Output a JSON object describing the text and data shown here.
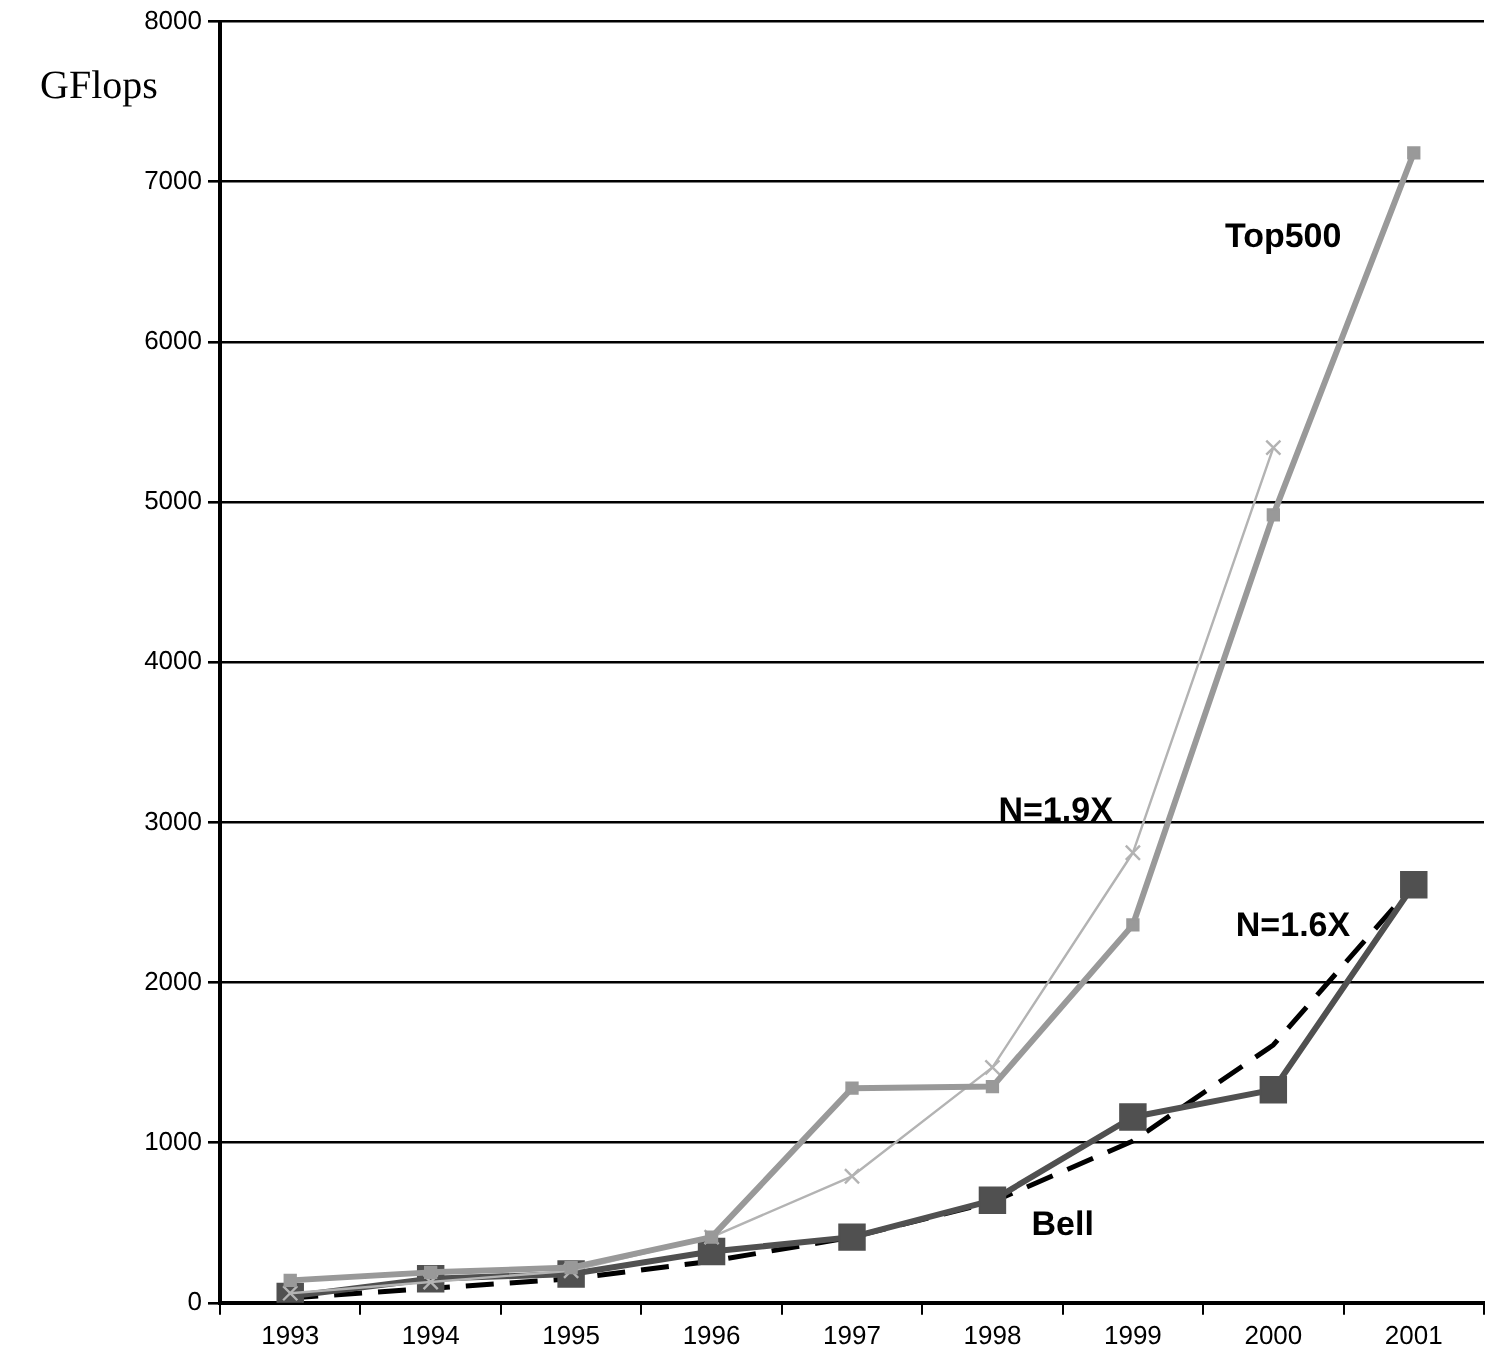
{
  "chart_data": {
    "type": "line",
    "ylabel": "GFlops",
    "categories": [
      "1993",
      "1994",
      "1995",
      "1996",
      "1997",
      "1998",
      "1999",
      "2000",
      "2001"
    ],
    "series": [
      {
        "name": "Top500",
        "color": "#999999",
        "marker": "square",
        "values": [
          140,
          190,
          220,
          410,
          1340,
          1350,
          2360,
          4920,
          7180
        ]
      },
      {
        "name": "N=1.9X",
        "color": "#b3b3b3",
        "marker": "cross",
        "values": [
          60,
          130,
          200,
          410,
          790,
          1470,
          2810,
          5340,
          null
        ]
      },
      {
        "name": "Bell",
        "color": "#505050",
        "marker": "square",
        "values": [
          40,
          150,
          180,
          320,
          410,
          640,
          1160,
          1330,
          2610
        ]
      },
      {
        "name": "N=1.6X",
        "color": "#000000",
        "marker": "none",
        "line_style": "dashed",
        "values": [
          30,
          90,
          150,
          260,
          410,
          630,
          1010,
          1610,
          2610
        ]
      }
    ],
    "ylim": [
      0,
      8000
    ],
    "yticks": [
      0,
      1000,
      2000,
      3000,
      4000,
      5000,
      6000,
      7000,
      8000
    ],
    "grid": "y",
    "legend": false
  }
}
